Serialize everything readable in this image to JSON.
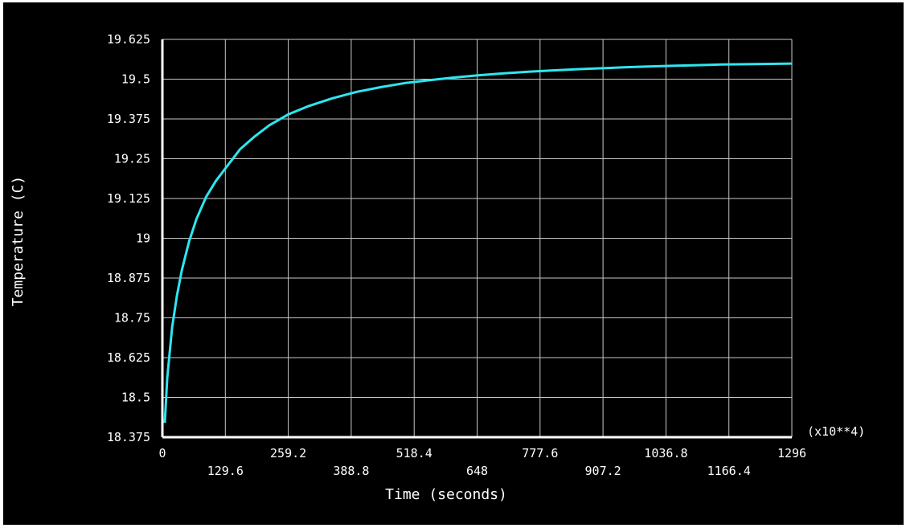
{
  "chart_data": {
    "type": "line",
    "title": "",
    "xlabel": "Time (seconds)",
    "ylabel": "Temperature (C)",
    "x_multiplier_label": "(x10**4)",
    "xlim": [
      0,
      1296
    ],
    "ylim": [
      18.375,
      19.625
    ],
    "x_ticks": [
      "0",
      "129.6",
      "259.2",
      "388.8",
      "518.4",
      "648",
      "777.6",
      "907.2",
      "1036.8",
      "1166.4",
      "1296"
    ],
    "y_ticks": [
      "18.375",
      "18.5",
      "18.625",
      "18.75",
      "18.875",
      "19",
      "19.125",
      "19.25",
      "19.375",
      "19.5",
      "19.625"
    ],
    "grid": true,
    "legend": "none",
    "colors": {
      "background": "#000000",
      "line": "#2ee6f0",
      "grid": "#c8c8c8",
      "axis": "#ffffff",
      "text": "#ffffff"
    },
    "series": [
      {
        "x": [
          5,
          10,
          20,
          30,
          40,
          55,
          70,
          90,
          110,
          130,
          160,
          190,
          220,
          260,
          300,
          350,
          400,
          450,
          500,
          550,
          600,
          650,
          700,
          750,
          800,
          850,
          900,
          950,
          1000,
          1050,
          1100,
          1150,
          1200,
          1250,
          1296
        ],
        "y": [
          18.42,
          18.56,
          18.72,
          18.82,
          18.9,
          18.99,
          19.06,
          19.13,
          19.18,
          19.22,
          19.28,
          19.32,
          19.355,
          19.39,
          19.415,
          19.44,
          19.46,
          19.475,
          19.488,
          19.497,
          19.505,
          19.512,
          19.518,
          19.523,
          19.527,
          19.531,
          19.534,
          19.537,
          19.54,
          19.542,
          19.544,
          19.546,
          19.547,
          19.548,
          19.549
        ]
      }
    ]
  }
}
